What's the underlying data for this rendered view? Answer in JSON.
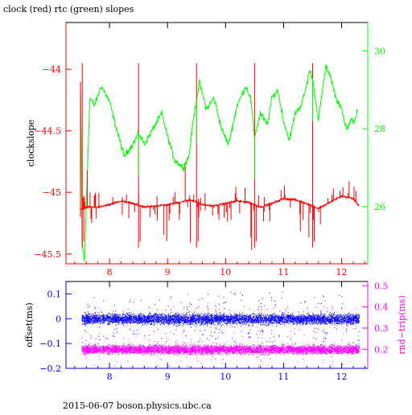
{
  "page": {
    "title": "clock (red) rtc (green) slopes",
    "footer": "2015-06-07 boson.physics.ubc.ca"
  },
  "chart_data": [
    {
      "type": "line",
      "panel": "top",
      "title": "clock (red) rtc (green) slopes",
      "ylabel_left": "clockslope",
      "ylabel_right": "",
      "xlim": [
        7.25,
        12.45
      ],
      "ylim_left": [
        -45.58,
        -43.62
      ],
      "ylim_right": [
        24.53,
        30.73
      ],
      "x_ticks": [
        8,
        9,
        10,
        11,
        12
      ],
      "x_tick_labels": [
        "8",
        "9",
        "10",
        "11",
        "12"
      ],
      "y_left_ticks": [
        -44,
        -44.5,
        -45,
        -45.5
      ],
      "y_left_tick_labels": [
        "−44",
        "−44.5",
        "−45",
        "−45.5"
      ],
      "y_right_ticks": [
        30,
        28,
        26
      ],
      "y_right_tick_labels": [
        "30",
        "28",
        "26"
      ],
      "colors": {
        "clock": "#ff0000",
        "rtc": "#00ff00",
        "left_axis": "#ff0000",
        "right_axis": "#00ff00"
      },
      "series": [
        {
          "axis": "right",
          "x": [
            7.5,
            7.53,
            7.57,
            7.61,
            7.66,
            7.74,
            7.86,
            8.0,
            8.12,
            8.25,
            8.4,
            8.5,
            8.6,
            8.75,
            8.9,
            9.0,
            9.12,
            9.27,
            9.37,
            9.45,
            9.55,
            9.67,
            9.8,
            9.93,
            10.05,
            10.2,
            10.35,
            10.43,
            10.5,
            10.6,
            10.72,
            10.8,
            10.9,
            11.0,
            11.1,
            11.2,
            11.3,
            11.38,
            11.45,
            11.5,
            11.6,
            11.67,
            11.73,
            11.8,
            11.9,
            12.0,
            12.05,
            12.1,
            12.15,
            12.22,
            12.28
          ],
          "y": [
            29.2,
            25.0,
            24.6,
            26.5,
            28.8,
            28.6,
            29.1,
            28.7,
            28.0,
            27.3,
            27.6,
            27.9,
            27.6,
            28.0,
            28.4,
            27.8,
            27.2,
            27.0,
            27.3,
            28.3,
            29.2,
            28.5,
            28.8,
            28.0,
            27.6,
            28.6,
            29.1,
            28.8,
            27.8,
            28.4,
            28.1,
            28.8,
            29.0,
            28.2,
            27.7,
            28.4,
            28.6,
            29.0,
            29.5,
            29.3,
            28.2,
            29.0,
            29.6,
            29.4,
            28.8,
            28.5,
            28.2,
            28.0,
            28.2,
            28.2,
            28.5
          ]
        },
        {
          "axis": "left",
          "x": [
            7.5,
            7.6,
            7.8,
            8.0,
            8.2,
            8.4,
            8.6,
            8.8,
            9.0,
            9.2,
            9.4,
            9.6,
            9.8,
            10.0,
            10.2,
            10.4,
            10.6,
            10.8,
            11.0,
            11.2,
            11.4,
            11.6,
            11.8,
            12.0,
            12.2,
            12.3
          ],
          "y": [
            -45.14,
            -45.12,
            -45.12,
            -45.1,
            -45.07,
            -45.09,
            -45.12,
            -45.11,
            -45.1,
            -45.08,
            -45.06,
            -45.1,
            -45.11,
            -45.09,
            -45.07,
            -45.08,
            -45.12,
            -45.09,
            -45.05,
            -45.06,
            -45.09,
            -45.13,
            -45.08,
            -45.03,
            -45.05,
            -45.11
          ]
        }
      ],
      "spikes_x": [
        7.5,
        7.53,
        8.5,
        9.5,
        10.5,
        11.5
      ]
    },
    {
      "type": "scatter",
      "panel": "bottom",
      "ylabel_left": "offset(ms)",
      "ylabel_right": "rnd−trip(ms)",
      "xlim": [
        7.25,
        12.45
      ],
      "ylim_left": [
        -0.2,
        0.15
      ],
      "ylim_right": [
        0.11,
        0.52
      ],
      "x_ticks": [
        8,
        9,
        10,
        11,
        12
      ],
      "x_tick_labels": [
        "8",
        "9",
        "10",
        "11",
        "12"
      ],
      "y_left_ticks": [
        0.1,
        0,
        -0.1,
        -0.2
      ],
      "y_left_tick_labels": [
        "0.1",
        "0",
        "−0.1",
        "−0.2"
      ],
      "y_right_ticks": [
        0.5,
        0.4,
        0.3,
        0.2
      ],
      "y_right_tick_labels": [
        "0.5",
        "0.4",
        "0.3",
        "0.2"
      ],
      "colors": {
        "offset": "#0000ff",
        "roundtrip": "#ff00ff",
        "left_axis": "#0000ff",
        "right_axis": "#ff00ff"
      },
      "series": [
        {
          "axis": "left",
          "x_range": [
            7.52,
            12.3
          ],
          "y_center": 0.0,
          "y_spread": 0.03
        },
        {
          "axis": "right",
          "x_range": [
            7.52,
            12.3
          ],
          "y_center": 0.2,
          "y_spread": 0.03
        }
      ]
    }
  ]
}
